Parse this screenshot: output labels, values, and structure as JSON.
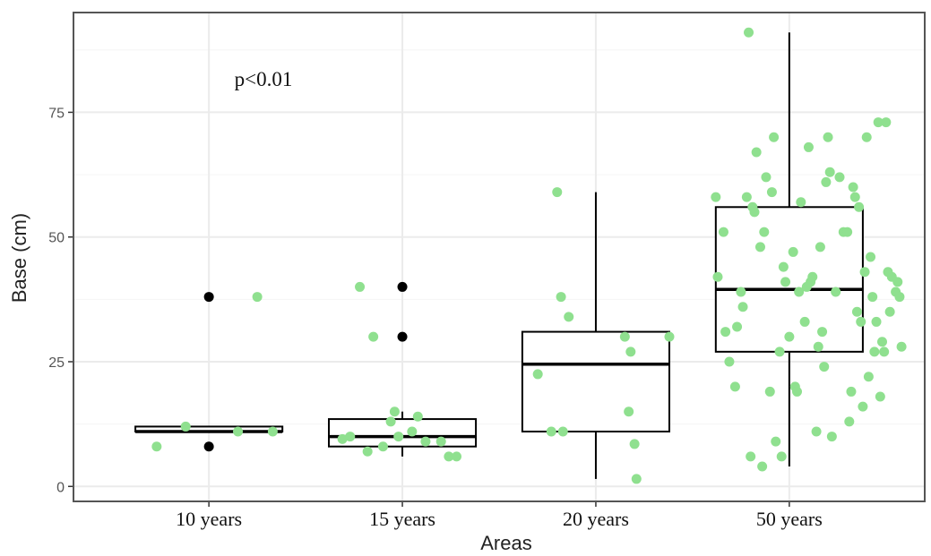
{
  "chart_data": {
    "type": "box",
    "xlabel": "Areas",
    "ylabel": "Base (cm)",
    "categories": [
      "10 years",
      "15 years",
      "20 years",
      "50 years"
    ],
    "yticks": [
      0,
      25,
      50,
      75
    ],
    "ylim": [
      -3,
      95
    ],
    "grid": true,
    "annotation": "p<0.01",
    "colors": {
      "jitter": "#8fe08f",
      "outlier": "#000000",
      "box": "#000000",
      "panel_border": "#555555",
      "grid_major": "#ebebeb",
      "grid_minor": "#f5f5f5"
    },
    "boxes": [
      {
        "category": "10 years",
        "lower_whisker": 11,
        "q1": 11,
        "median": 11,
        "q3": 12,
        "upper_whisker": 12,
        "outliers": [
          38,
          8
        ]
      },
      {
        "category": "15 years",
        "lower_whisker": 6,
        "q1": 8,
        "median": 10,
        "q3": 13.5,
        "upper_whisker": 15,
        "outliers": [
          40,
          30
        ]
      },
      {
        "category": "20 years",
        "lower_whisker": 1.5,
        "q1": 11,
        "median": 24.5,
        "q3": 31,
        "upper_whisker": 59,
        "outliers": []
      },
      {
        "category": "50 years",
        "lower_whisker": 4,
        "q1": 27,
        "median": 39.5,
        "q3": 56,
        "upper_whisker": 91,
        "outliers": []
      }
    ],
    "jitter_points": [
      {
        "x": 0.73,
        "y": 8
      },
      {
        "x": 0.88,
        "y": 12
      },
      {
        "x": 1.15,
        "y": 11
      },
      {
        "x": 1.25,
        "y": 38
      },
      {
        "x": 1.33,
        "y": 11
      },
      {
        "x": 1.73,
        "y": 10
      },
      {
        "x": 1.78,
        "y": 40
      },
      {
        "x": 1.85,
        "y": 30
      },
      {
        "x": 1.82,
        "y": 7
      },
      {
        "x": 1.9,
        "y": 8
      },
      {
        "x": 1.94,
        "y": 13
      },
      {
        "x": 1.98,
        "y": 10
      },
      {
        "x": 2.05,
        "y": 11
      },
      {
        "x": 2.08,
        "y": 14
      },
      {
        "x": 2.12,
        "y": 9
      },
      {
        "x": 2.2,
        "y": 9
      },
      {
        "x": 2.24,
        "y": 6
      },
      {
        "x": 2.28,
        "y": 6
      },
      {
        "x": 1.96,
        "y": 15
      },
      {
        "x": 1.69,
        "y": 9.5
      },
      {
        "x": 2.7,
        "y": 22.5
      },
      {
        "x": 2.77,
        "y": 11
      },
      {
        "x": 2.83,
        "y": 11
      },
      {
        "x": 2.8,
        "y": 59
      },
      {
        "x": 2.82,
        "y": 38
      },
      {
        "x": 2.86,
        "y": 34
      },
      {
        "x": 3.15,
        "y": 30
      },
      {
        "x": 3.18,
        "y": 27
      },
      {
        "x": 3.17,
        "y": 15
      },
      {
        "x": 3.2,
        "y": 8.5
      },
      {
        "x": 3.21,
        "y": 1.5
      },
      {
        "x": 3.38,
        "y": 30
      },
      {
        "x": 3.62,
        "y": 58
      },
      {
        "x": 3.63,
        "y": 42
      },
      {
        "x": 3.66,
        "y": 51
      },
      {
        "x": 3.67,
        "y": 31
      },
      {
        "x": 3.69,
        "y": 25
      },
      {
        "x": 3.72,
        "y": 20
      },
      {
        "x": 3.73,
        "y": 32
      },
      {
        "x": 3.75,
        "y": 39
      },
      {
        "x": 3.76,
        "y": 36
      },
      {
        "x": 3.78,
        "y": 58
      },
      {
        "x": 3.79,
        "y": 91
      },
      {
        "x": 3.8,
        "y": 6
      },
      {
        "x": 3.81,
        "y": 56
      },
      {
        "x": 3.82,
        "y": 55
      },
      {
        "x": 3.83,
        "y": 67
      },
      {
        "x": 3.85,
        "y": 48
      },
      {
        "x": 3.86,
        "y": 4
      },
      {
        "x": 3.87,
        "y": 51
      },
      {
        "x": 3.88,
        "y": 62
      },
      {
        "x": 3.9,
        "y": 19
      },
      {
        "x": 3.91,
        "y": 59
      },
      {
        "x": 3.92,
        "y": 70
      },
      {
        "x": 3.93,
        "y": 9
      },
      {
        "x": 3.95,
        "y": 27
      },
      {
        "x": 3.96,
        "y": 6
      },
      {
        "x": 3.97,
        "y": 44
      },
      {
        "x": 3.98,
        "y": 41
      },
      {
        "x": 4.0,
        "y": 30
      },
      {
        "x": 4.02,
        "y": 47
      },
      {
        "x": 4.03,
        "y": 20
      },
      {
        "x": 4.04,
        "y": 19
      },
      {
        "x": 4.05,
        "y": 39
      },
      {
        "x": 4.06,
        "y": 57
      },
      {
        "x": 4.08,
        "y": 33
      },
      {
        "x": 4.09,
        "y": 40
      },
      {
        "x": 4.1,
        "y": 68
      },
      {
        "x": 4.11,
        "y": 41
      },
      {
        "x": 4.12,
        "y": 42
      },
      {
        "x": 4.14,
        "y": 11
      },
      {
        "x": 4.15,
        "y": 28
      },
      {
        "x": 4.16,
        "y": 48
      },
      {
        "x": 4.17,
        "y": 31
      },
      {
        "x": 4.18,
        "y": 24
      },
      {
        "x": 4.19,
        "y": 61
      },
      {
        "x": 4.2,
        "y": 70
      },
      {
        "x": 4.21,
        "y": 63
      },
      {
        "x": 4.22,
        "y": 10
      },
      {
        "x": 4.24,
        "y": 39
      },
      {
        "x": 4.26,
        "y": 62
      },
      {
        "x": 4.28,
        "y": 51
      },
      {
        "x": 4.3,
        "y": 51
      },
      {
        "x": 4.31,
        "y": 13
      },
      {
        "x": 4.32,
        "y": 19
      },
      {
        "x": 4.33,
        "y": 60
      },
      {
        "x": 4.34,
        "y": 58
      },
      {
        "x": 4.35,
        "y": 35
      },
      {
        "x": 4.36,
        "y": 56
      },
      {
        "x": 4.37,
        "y": 33
      },
      {
        "x": 4.38,
        "y": 16
      },
      {
        "x": 4.39,
        "y": 43
      },
      {
        "x": 4.4,
        "y": 70
      },
      {
        "x": 4.41,
        "y": 22
      },
      {
        "x": 4.42,
        "y": 46
      },
      {
        "x": 4.43,
        "y": 38
      },
      {
        "x": 4.44,
        "y": 27
      },
      {
        "x": 4.45,
        "y": 33
      },
      {
        "x": 4.46,
        "y": 73
      },
      {
        "x": 4.47,
        "y": 18
      },
      {
        "x": 4.48,
        "y": 29
      },
      {
        "x": 4.49,
        "y": 27
      },
      {
        "x": 4.5,
        "y": 73
      },
      {
        "x": 4.51,
        "y": 43
      },
      {
        "x": 4.52,
        "y": 35
      },
      {
        "x": 4.53,
        "y": 42
      },
      {
        "x": 4.55,
        "y": 39
      },
      {
        "x": 4.56,
        "y": 41
      },
      {
        "x": 4.57,
        "y": 38
      },
      {
        "x": 4.58,
        "y": 28
      }
    ]
  }
}
